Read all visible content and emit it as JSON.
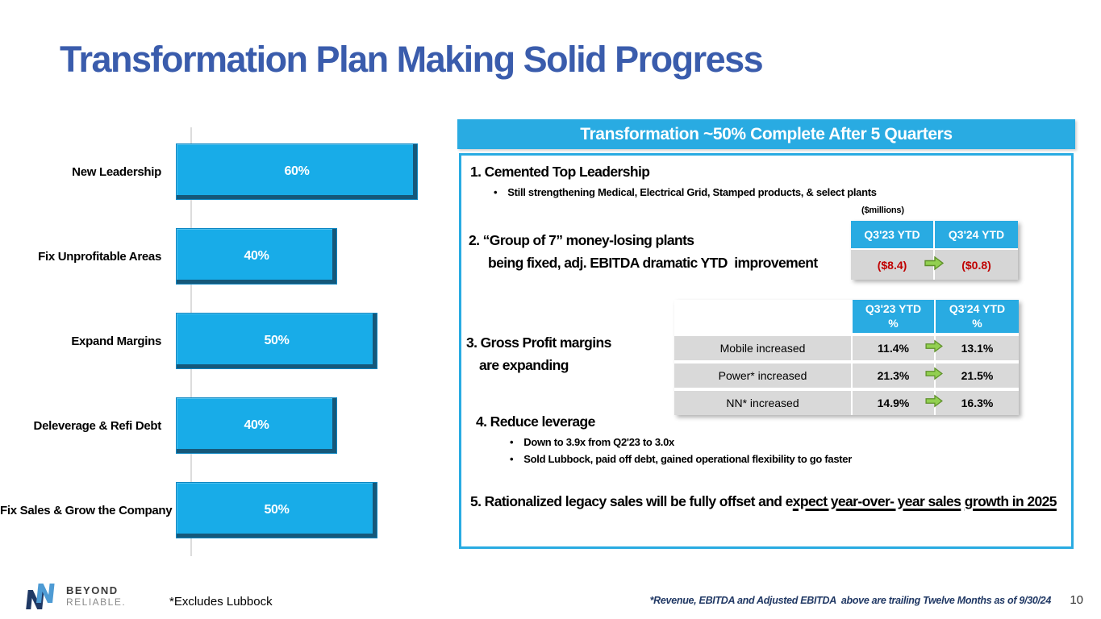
{
  "slide": {
    "title": "Transformation Plan Making Solid Progress",
    "page_number": "10",
    "footnote_left": "*Excludes Lubbock",
    "footnote_right": "*Revenue, EBITDA and Adjusted EBITDA  above are trailing Twelve Months as of 9/30/24",
    "logo": {
      "line1": "BEYOND",
      "line2": "RELIABLE."
    }
  },
  "colors": {
    "accent_cyan": "#29ABE2",
    "bar_fill": "#18ACE8",
    "bar_shadow": "#15587A",
    "title_blue": "#3A5CAC",
    "negative_red": "#C00000",
    "arrow_green": "#92D050",
    "cell_gray": "#D6D6D6",
    "footnote_navy": "#203864"
  },
  "chart_data": {
    "type": "bar",
    "orientation": "horizontal",
    "categories": [
      "New Leadership",
      "Fix Unprofitable Areas",
      "Expand Margins",
      "Deleverage & Refi Debt",
      "Fix Sales & Grow the Company"
    ],
    "values": [
      60,
      40,
      50,
      40,
      50
    ],
    "labels": [
      "60%",
      "40%",
      "50%",
      "40%",
      "50%"
    ],
    "xlim": [
      0,
      100
    ],
    "grid": false,
    "bar_color": "#18ACE8"
  },
  "panel": {
    "header": "Transformation ~50% Complete After 5 Quarters",
    "item1": {
      "title": "1. Cemented Top Leadership",
      "bullet": "Still strengthening Medical, Electrical Grid, Stamped products, & select plants"
    },
    "item2": {
      "line1": "2. “Group of 7” money-losing plants",
      "line2": "being fixed, adj. EBITDA dramatic YTD  improvement"
    },
    "item3": {
      "line1": "3. Gross Profit margins",
      "line2": "are expanding"
    },
    "item4": {
      "title": "4. Reduce leverage",
      "bullets": [
        "Down to 3.9x from Q2'23 to 3.0x",
        "Sold Lubbock, paid off debt, gained operational flexibility to go faster"
      ]
    },
    "item5": {
      "prefix": "5. Rationalized legacy sales will be fully offset and e",
      "underlined_line1": "xpect year-over- year sales",
      "underlined_line2": "growth in 2025"
    },
    "table1": {
      "units_label": "($millions)",
      "headers": [
        "Q3'23 YTD",
        "Q3'24 YTD"
      ],
      "row": {
        "from": "($8.4)",
        "to": "($0.8)"
      }
    },
    "table2": {
      "headers": [
        "Q3'23 YTD",
        "Q3'24 YTD"
      ],
      "header_percent": "%",
      "rows": [
        {
          "label": "Mobile increased",
          "from": "11.4%",
          "to": "13.1%"
        },
        {
          "label": "Power* increased",
          "from": "21.3%",
          "to": "21.5%"
        },
        {
          "label": "NN* increased",
          "from": "14.9%",
          "to": "16.3%"
        }
      ]
    }
  }
}
